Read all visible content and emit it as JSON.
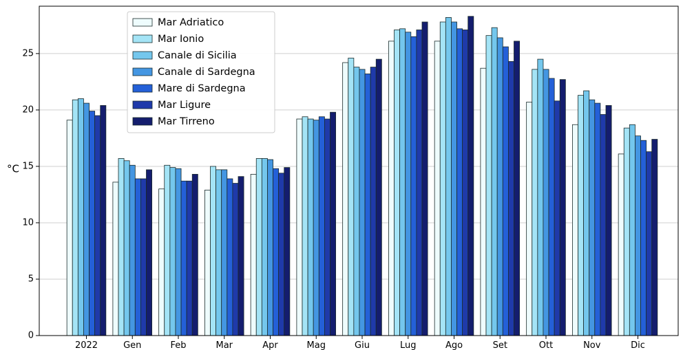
{
  "chart_data": {
    "type": "bar",
    "ylabel": "°C",
    "xlabel": "",
    "ylim": [
      0,
      29.2
    ],
    "yticks": [
      0,
      5,
      10,
      15,
      20,
      25
    ],
    "grid": "horizontal",
    "legend_position": "top-left",
    "categories": [
      "2022",
      "Gen",
      "Feb",
      "Mar",
      "Apr",
      "Mag",
      "Giu",
      "Lug",
      "Ago",
      "Set",
      "Ott",
      "Nov",
      "Dic"
    ],
    "series": [
      {
        "name": "Mar Adriatico",
        "color": "#eefcfd",
        "values": [
          19.1,
          13.6,
          13.0,
          12.9,
          14.3,
          19.2,
          24.2,
          26.1,
          26.1,
          23.7,
          20.7,
          18.7,
          16.1
        ]
      },
      {
        "name": "Mar Ionio",
        "color": "#a4e4f6",
        "values": [
          20.9,
          15.7,
          15.1,
          15.0,
          15.7,
          19.4,
          24.6,
          27.1,
          27.8,
          26.6,
          23.6,
          21.3,
          18.4
        ]
      },
      {
        "name": "Canale di Sicilia",
        "color": "#74c7ed",
        "values": [
          21.0,
          15.5,
          14.9,
          14.7,
          15.7,
          19.2,
          23.8,
          27.2,
          28.2,
          27.3,
          24.5,
          21.7,
          18.7
        ]
      },
      {
        "name": "Canale di Sardegna",
        "color": "#4496e2",
        "values": [
          20.6,
          15.1,
          14.8,
          14.7,
          15.6,
          19.1,
          23.6,
          26.9,
          27.8,
          26.4,
          23.6,
          20.9,
          17.7
        ]
      },
      {
        "name": "Mare di Sardegna",
        "color": "#2460d8",
        "values": [
          19.9,
          13.9,
          13.7,
          13.9,
          14.8,
          19.4,
          23.2,
          26.5,
          27.2,
          25.6,
          22.8,
          20.6,
          17.3
        ]
      },
      {
        "name": "Mar Ligure",
        "color": "#1f3aaa",
        "values": [
          19.5,
          13.9,
          13.7,
          13.5,
          14.4,
          19.2,
          23.8,
          27.1,
          27.1,
          24.3,
          20.8,
          19.6,
          16.3
        ]
      },
      {
        "name": "Mar Tirreno",
        "color": "#141d6e",
        "values": [
          20.4,
          14.7,
          14.3,
          14.1,
          14.9,
          19.8,
          24.5,
          27.8,
          28.3,
          26.1,
          22.7,
          20.4,
          17.4
        ]
      }
    ]
  }
}
